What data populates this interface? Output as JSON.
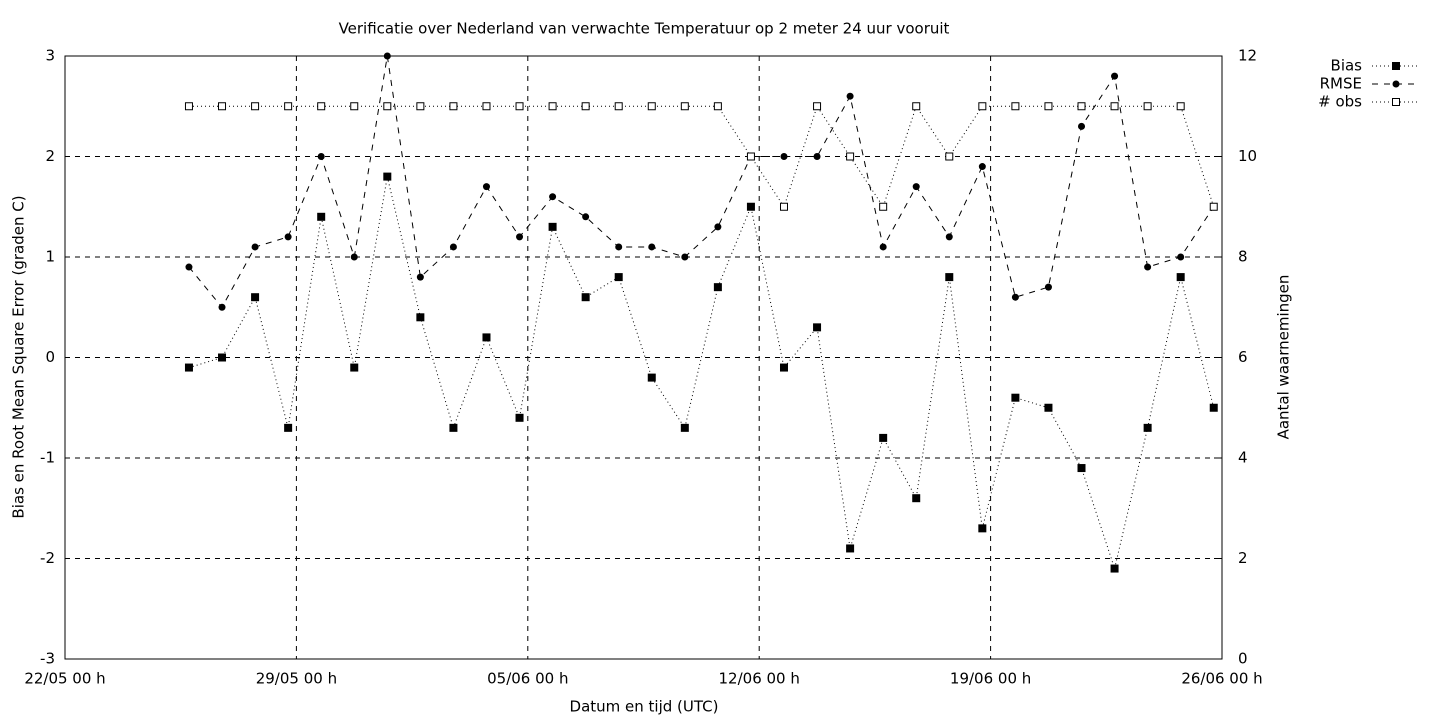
{
  "chart_data": {
    "type": "line",
    "title": "Verificatie over Nederland van verwachte Temperatuur op 2 meter 24 uur vooruit",
    "x_label": "Datum en tijd (UTC)",
    "y_label": "Bias en Root Mean Square Error (graden C)",
    "y2_label": "Aantal waarnemingen",
    "x": [
      "25/05 18 h",
      "26/05 18 h",
      "27/05 18 h",
      "28/05 18 h",
      "29/05 18 h",
      "30/05 18 h",
      "31/05 18 h",
      "01/06 18 h",
      "02/06 18 h",
      "03/06 18 h",
      "04/06 18 h",
      "05/06 18 h",
      "06/06 18 h",
      "07/06 18 h",
      "08/06 18 h",
      "09/06 18 h",
      "10/06 18 h",
      "11/06 18 h",
      "12/06 18 h",
      "13/06 18 h",
      "14/06 18 h",
      "15/06 18 h",
      "16/06 18 h",
      "17/06 18 h",
      "18/06 18 h",
      "19/06 18 h",
      "20/06 18 h",
      "21/06 18 h",
      "22/06 18 h",
      "23/06 18 h",
      "24/06 18 h",
      "25/06 18 h"
    ],
    "series": [
      {
        "name": "Bias",
        "color": "#000000",
        "line_style": "dotted",
        "marker": "filled-square",
        "values": [
          -0.1,
          0.0,
          0.6,
          -0.7,
          1.4,
          -0.1,
          1.8,
          0.4,
          -0.7,
          0.2,
          -0.6,
          1.3,
          0.6,
          0.8,
          -0.2,
          -0.7,
          0.7,
          1.5,
          -0.1,
          0.3,
          -1.9,
          -0.8,
          -1.4,
          0.8,
          -1.7,
          -0.4,
          -0.5,
          -1.1,
          -2.1,
          -0.7,
          0.8,
          -0.5
        ]
      },
      {
        "name": "RMSE",
        "color": "#000000",
        "line_style": "dashed",
        "marker": "filled-circle",
        "values": [
          0.9,
          0.5,
          1.1,
          1.2,
          2.0,
          1.0,
          3.0,
          0.8,
          1.1,
          1.7,
          1.2,
          1.6,
          1.4,
          1.1,
          1.1,
          1.0,
          1.3,
          2.0,
          2.0,
          2.0,
          2.6,
          1.1,
          1.7,
          1.2,
          1.9,
          0.6,
          0.7,
          2.3,
          2.8,
          0.9,
          1.0,
          1.5
        ]
      },
      {
        "name": "# obs",
        "color": "#000000",
        "line_style": "dotted",
        "marker": "open-square",
        "axis": "y2",
        "values": [
          11,
          11,
          11,
          11,
          11,
          11,
          11,
          11,
          11,
          11,
          11,
          11,
          11,
          11,
          11,
          11,
          11,
          10,
          9,
          11,
          10,
          9,
          11,
          10,
          11,
          11,
          11,
          11,
          11,
          11,
          11,
          9
        ]
      }
    ],
    "xlim": [
      "22/05 00 h",
      "26/06 00 h"
    ],
    "xticks": [
      "22/05 00 h",
      "29/05 00 h",
      "05/06 00 h",
      "12/06 00 h",
      "19/06 00 h",
      "26/06 00 h"
    ],
    "ylim": [
      -3,
      3
    ],
    "yticks": [
      -3,
      -2,
      -1,
      0,
      1,
      2,
      3
    ],
    "y2lim": [
      0,
      12
    ],
    "y2ticks": [
      0,
      2,
      4,
      6,
      8,
      10,
      12
    ],
    "grid": true,
    "legend": "outside-top-right"
  }
}
